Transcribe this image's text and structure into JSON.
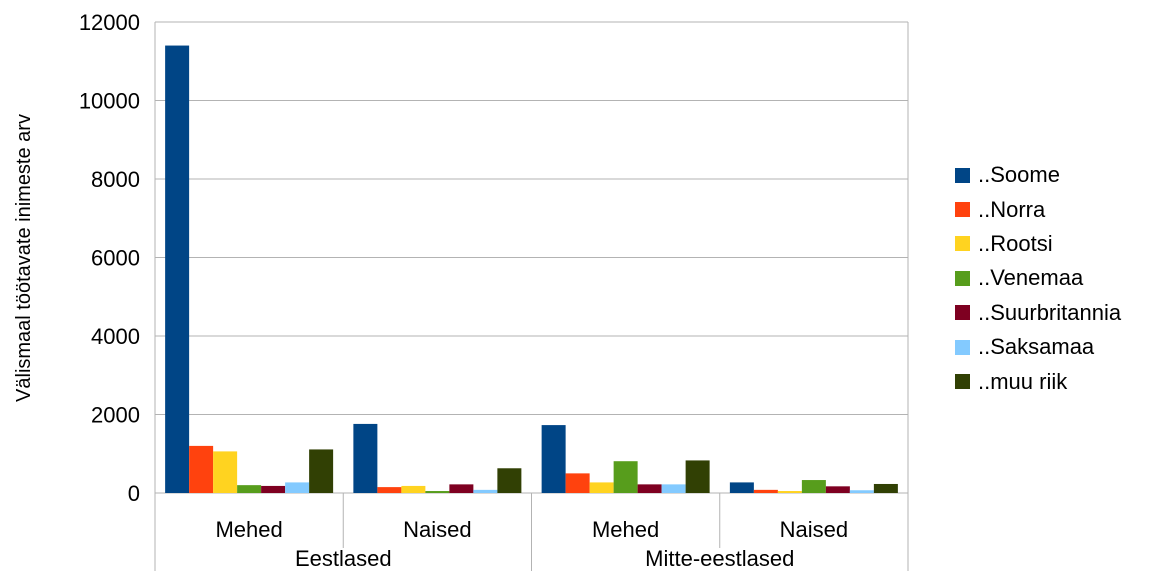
{
  "chart_data": {
    "type": "bar",
    "title": "",
    "ylabel": "Välismaal töötavate inimeste arv",
    "xlabel": "",
    "ylim": [
      0,
      12000
    ],
    "yticks": [
      0,
      2000,
      4000,
      6000,
      8000,
      10000,
      12000
    ],
    "grid": true,
    "legend_position": "right",
    "groups": [
      {
        "label": "Eestlased",
        "categories": [
          "Mehed",
          "Naised"
        ]
      },
      {
        "label": "Mitte-eestlased",
        "categories": [
          "Mehed",
          "Naised"
        ]
      }
    ],
    "categories": [
      "Mehed",
      "Naised",
      "Mehed",
      "Naised"
    ],
    "series": [
      {
        "name": "..Soome",
        "color": "#004586",
        "values": [
          11400,
          1760,
          1730,
          270
        ]
      },
      {
        "name": "..Norra",
        "color": "#ff420e",
        "values": [
          1200,
          150,
          500,
          80
        ]
      },
      {
        "name": "..Rootsi",
        "color": "#ffd320",
        "values": [
          1060,
          180,
          270,
          50
        ]
      },
      {
        "name": "..Venemaa",
        "color": "#579d1c",
        "values": [
          200,
          50,
          810,
          330
        ]
      },
      {
        "name": "..Suurbritannia",
        "color": "#7e0021",
        "values": [
          180,
          220,
          220,
          170
        ]
      },
      {
        "name": "..Saksamaa",
        "color": "#83caff",
        "values": [
          270,
          80,
          220,
          70
        ]
      },
      {
        "name": "..muu riik",
        "color": "#314004",
        "values": [
          1110,
          630,
          830,
          230
        ]
      }
    ]
  }
}
